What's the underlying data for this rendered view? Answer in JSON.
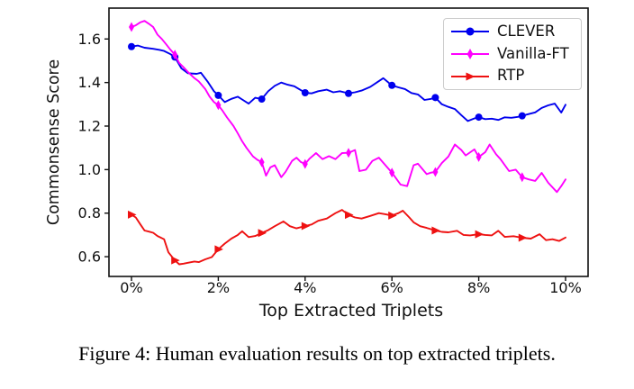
{
  "figure": {
    "caption": "Figure 4: Human evaluation results on top extracted triplets."
  },
  "chart_data": {
    "type": "line",
    "title": "",
    "xlabel": "Top Extracted Triplets",
    "ylabel": "Commonsense Score",
    "xlim": [
      -0.52,
      10.52
    ],
    "ylim": [
      0.51,
      1.74
    ],
    "grid": false,
    "legend_position": "upper right",
    "x_ticks": {
      "values": [
        0,
        2,
        4,
        6,
        8,
        10
      ],
      "labels": [
        "0%",
        "2%",
        "4%",
        "6%",
        "8%",
        "10%"
      ]
    },
    "y_ticks": {
      "values": [
        0.6,
        0.8,
        1.0,
        1.2,
        1.4,
        1.6
      ],
      "labels": [
        "0.6",
        "0.8",
        "1.0",
        "1.2",
        "1.4",
        "1.6"
      ]
    },
    "marker_x_positions": [
      0,
      1,
      2,
      3,
      4,
      5,
      6,
      7,
      8,
      9
    ],
    "series": [
      {
        "name": "CLEVER",
        "color": "#0000ee",
        "marker": "circle",
        "points": [
          [
            0,
            1.565
          ],
          [
            0.15,
            1.57
          ],
          [
            0.3,
            1.56
          ],
          [
            0.5,
            1.555
          ],
          [
            0.65,
            1.55
          ],
          [
            0.75,
            1.545
          ],
          [
            0.9,
            1.53
          ],
          [
            1,
            1.517
          ],
          [
            1.15,
            1.465
          ],
          [
            1.3,
            1.443
          ],
          [
            1.5,
            1.44
          ],
          [
            1.6,
            1.445
          ],
          [
            1.75,
            1.405
          ],
          [
            1.9,
            1.36
          ],
          [
            2,
            1.341
          ],
          [
            2.15,
            1.31
          ],
          [
            2.3,
            1.325
          ],
          [
            2.45,
            1.335
          ],
          [
            2.55,
            1.322
          ],
          [
            2.7,
            1.303
          ],
          [
            2.85,
            1.33
          ],
          [
            3,
            1.324
          ],
          [
            3.15,
            1.36
          ],
          [
            3.3,
            1.385
          ],
          [
            3.45,
            1.4
          ],
          [
            3.6,
            1.39
          ],
          [
            3.75,
            1.383
          ],
          [
            3.9,
            1.365
          ],
          [
            4,
            1.353
          ],
          [
            4.15,
            1.35
          ],
          [
            4.3,
            1.36
          ],
          [
            4.5,
            1.367
          ],
          [
            4.65,
            1.355
          ],
          [
            4.8,
            1.36
          ],
          [
            5,
            1.35
          ],
          [
            5.15,
            1.355
          ],
          [
            5.3,
            1.363
          ],
          [
            5.5,
            1.38
          ],
          [
            5.65,
            1.4
          ],
          [
            5.8,
            1.42
          ],
          [
            5.95,
            1.395
          ],
          [
            6,
            1.387
          ],
          [
            6.15,
            1.378
          ],
          [
            6.3,
            1.37
          ],
          [
            6.45,
            1.352
          ],
          [
            6.6,
            1.345
          ],
          [
            6.75,
            1.32
          ],
          [
            6.9,
            1.325
          ],
          [
            7,
            1.331
          ],
          [
            7.15,
            1.3
          ],
          [
            7.3,
            1.288
          ],
          [
            7.45,
            1.278
          ],
          [
            7.6,
            1.25
          ],
          [
            7.75,
            1.223
          ],
          [
            7.9,
            1.235
          ],
          [
            8,
            1.241
          ],
          [
            8.15,
            1.232
          ],
          [
            8.3,
            1.234
          ],
          [
            8.45,
            1.228
          ],
          [
            8.6,
            1.24
          ],
          [
            8.75,
            1.238
          ],
          [
            8.9,
            1.242
          ],
          [
            9,
            1.247
          ],
          [
            9.15,
            1.255
          ],
          [
            9.3,
            1.263
          ],
          [
            9.45,
            1.283
          ],
          [
            9.6,
            1.295
          ],
          [
            9.75,
            1.303
          ],
          [
            9.9,
            1.262
          ],
          [
            10,
            1.298
          ]
        ]
      },
      {
        "name": "Vanilla-FT",
        "color": "#ff00ff",
        "marker": "thin-diamond",
        "points": [
          [
            0,
            1.655
          ],
          [
            0.1,
            1.663
          ],
          [
            0.2,
            1.676
          ],
          [
            0.3,
            1.683
          ],
          [
            0.4,
            1.67
          ],
          [
            0.5,
            1.655
          ],
          [
            0.6,
            1.62
          ],
          [
            0.7,
            1.6
          ],
          [
            0.8,
            1.575
          ],
          [
            0.9,
            1.55
          ],
          [
            1,
            1.528
          ],
          [
            1.1,
            1.49
          ],
          [
            1.2,
            1.47
          ],
          [
            1.3,
            1.448
          ],
          [
            1.45,
            1.42
          ],
          [
            1.55,
            1.405
          ],
          [
            1.7,
            1.37
          ],
          [
            1.8,
            1.335
          ],
          [
            1.9,
            1.31
          ],
          [
            2,
            1.296
          ],
          [
            2.1,
            1.27
          ],
          [
            2.2,
            1.24
          ],
          [
            2.35,
            1.2
          ],
          [
            2.45,
            1.166
          ],
          [
            2.55,
            1.13
          ],
          [
            2.65,
            1.1
          ],
          [
            2.8,
            1.06
          ],
          [
            2.9,
            1.045
          ],
          [
            3,
            1.034
          ],
          [
            3.1,
            0.972
          ],
          [
            3.2,
            1.01
          ],
          [
            3.3,
            1.02
          ],
          [
            3.45,
            0.965
          ],
          [
            3.55,
            0.99
          ],
          [
            3.7,
            1.04
          ],
          [
            3.8,
            1.055
          ],
          [
            3.9,
            1.035
          ],
          [
            4,
            1.026
          ],
          [
            4.1,
            1.05
          ],
          [
            4.25,
            1.076
          ],
          [
            4.4,
            1.048
          ],
          [
            4.55,
            1.062
          ],
          [
            4.7,
            1.048
          ],
          [
            4.85,
            1.076
          ],
          [
            5,
            1.077
          ],
          [
            5.15,
            1.09
          ],
          [
            5.25,
            0.993
          ],
          [
            5.4,
            1.0
          ],
          [
            5.55,
            1.04
          ],
          [
            5.7,
            1.055
          ],
          [
            5.85,
            1.02
          ],
          [
            6,
            0.986
          ],
          [
            6.2,
            0.931
          ],
          [
            6.35,
            0.924
          ],
          [
            6.5,
            1.02
          ],
          [
            6.6,
            1.027
          ],
          [
            6.8,
            0.979
          ],
          [
            6.9,
            0.986
          ],
          [
            7,
            0.989
          ],
          [
            7.15,
            1.03
          ],
          [
            7.3,
            1.06
          ],
          [
            7.45,
            1.115
          ],
          [
            7.6,
            1.09
          ],
          [
            7.7,
            1.065
          ],
          [
            7.9,
            1.093
          ],
          [
            8,
            1.058
          ],
          [
            8.15,
            1.08
          ],
          [
            8.25,
            1.115
          ],
          [
            8.4,
            1.07
          ],
          [
            8.5,
            1.048
          ],
          [
            8.7,
            0.993
          ],
          [
            8.85,
            1.0
          ],
          [
            9,
            0.965
          ],
          [
            9.15,
            0.955
          ],
          [
            9.3,
            0.948
          ],
          [
            9.45,
            0.985
          ],
          [
            9.6,
            0.94
          ],
          [
            9.8,
            0.897
          ],
          [
            9.9,
            0.924
          ],
          [
            10,
            0.955
          ]
        ]
      },
      {
        "name": "RTP",
        "color": "#ee1111",
        "marker": "triangle-right",
        "points": [
          [
            0,
            0.793
          ],
          [
            0.1,
            0.78
          ],
          [
            0.2,
            0.75
          ],
          [
            0.3,
            0.72
          ],
          [
            0.4,
            0.715
          ],
          [
            0.5,
            0.71
          ],
          [
            0.6,
            0.695
          ],
          [
            0.75,
            0.68
          ],
          [
            0.85,
            0.62
          ],
          [
            1,
            0.583
          ],
          [
            1.1,
            0.565
          ],
          [
            1.2,
            0.568
          ],
          [
            1.3,
            0.572
          ],
          [
            1.45,
            0.578
          ],
          [
            1.55,
            0.575
          ],
          [
            1.7,
            0.588
          ],
          [
            1.85,
            0.598
          ],
          [
            2,
            0.634
          ],
          [
            2.15,
            0.66
          ],
          [
            2.3,
            0.683
          ],
          [
            2.45,
            0.7
          ],
          [
            2.55,
            0.717
          ],
          [
            2.7,
            0.69
          ],
          [
            2.85,
            0.695
          ],
          [
            3,
            0.709
          ],
          [
            3.15,
            0.722
          ],
          [
            3.3,
            0.74
          ],
          [
            3.5,
            0.762
          ],
          [
            3.65,
            0.74
          ],
          [
            3.8,
            0.73
          ],
          [
            4,
            0.741
          ],
          [
            4.15,
            0.748
          ],
          [
            4.3,
            0.765
          ],
          [
            4.5,
            0.775
          ],
          [
            4.7,
            0.8
          ],
          [
            4.85,
            0.815
          ],
          [
            5,
            0.792
          ],
          [
            5.15,
            0.78
          ],
          [
            5.3,
            0.775
          ],
          [
            5.5,
            0.787
          ],
          [
            5.7,
            0.8
          ],
          [
            5.85,
            0.795
          ],
          [
            6,
            0.789
          ],
          [
            6.15,
            0.8
          ],
          [
            6.25,
            0.811
          ],
          [
            6.4,
            0.78
          ],
          [
            6.5,
            0.758
          ],
          [
            6.65,
            0.74
          ],
          [
            6.8,
            0.732
          ],
          [
            7,
            0.72
          ],
          [
            7.15,
            0.714
          ],
          [
            7.3,
            0.712
          ],
          [
            7.5,
            0.719
          ],
          [
            7.65,
            0.7
          ],
          [
            7.8,
            0.698
          ],
          [
            8,
            0.703
          ],
          [
            8.15,
            0.7
          ],
          [
            8.3,
            0.698
          ],
          [
            8.45,
            0.719
          ],
          [
            8.6,
            0.691
          ],
          [
            8.8,
            0.694
          ],
          [
            9,
            0.687
          ],
          [
            9.2,
            0.683
          ],
          [
            9.4,
            0.703
          ],
          [
            9.55,
            0.676
          ],
          [
            9.7,
            0.68
          ],
          [
            9.85,
            0.672
          ],
          [
            10,
            0.688
          ]
        ]
      }
    ]
  }
}
